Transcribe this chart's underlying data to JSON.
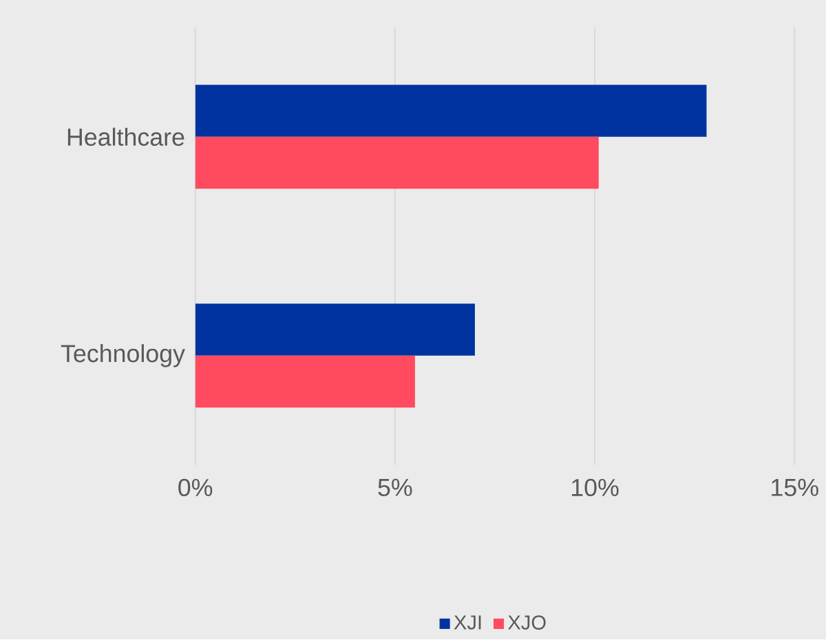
{
  "chart_data": {
    "type": "bar",
    "orientation": "horizontal",
    "categories": [
      "Healthcare",
      "Technology"
    ],
    "series": [
      {
        "name": "XJI",
        "color": "#0033a0",
        "values": [
          12.8,
          7.0
        ]
      },
      {
        "name": "XJO",
        "color": "#ff4a5f",
        "values": [
          10.1,
          5.5
        ]
      }
    ],
    "xlim": [
      0,
      15
    ],
    "xticks": [
      {
        "value": 0,
        "label": "0%"
      },
      {
        "value": 5,
        "label": "5%"
      },
      {
        "value": 10,
        "label": "10%"
      },
      {
        "value": 15,
        "label": "15%"
      }
    ],
    "grid": "x",
    "legend": "bottom"
  }
}
